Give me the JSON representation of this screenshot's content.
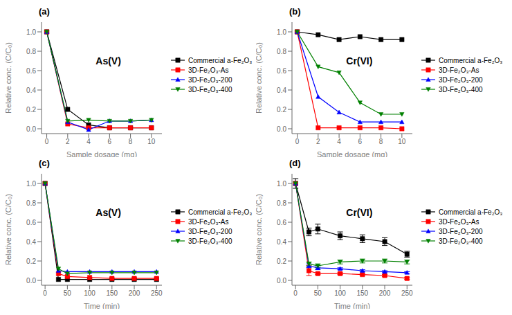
{
  "chart_data": [
    {
      "type": "line",
      "title": "(a)",
      "annotations": [
        "As(V)"
      ],
      "xlabel": "Sample dosage (mg)",
      "ylabel": "Relative conc. (C/C₀)",
      "x": [
        0,
        2,
        4,
        6,
        8,
        10
      ],
      "xlim": [
        -0.5,
        11
      ],
      "xticks": [
        0,
        2,
        4,
        6,
        8,
        10
      ],
      "ylim": [
        -0.05,
        1.1
      ],
      "yticks": [
        {
          "value": 0,
          "label": "0.0"
        },
        0.2,
        0.4,
        0.6,
        0.8,
        {
          "value": 1,
          "label": "1.0"
        }
      ],
      "grid": false,
      "legend": "right",
      "series": [
        {
          "name": "Commercial a-Fe₂O₃",
          "color": "#000000",
          "marker": "square",
          "values": [
            1.0,
            0.2,
            0.04,
            0.01,
            0.01,
            0.01
          ]
        },
        {
          "name": "3D-Fe₂O₃-As",
          "color": "#ff0000",
          "marker": "square",
          "values": [
            1.0,
            0.05,
            0.01,
            0.01,
            0.01,
            0.01
          ]
        },
        {
          "name": "3D-Fe₂O₃-200",
          "color": "#0000ff",
          "marker": "triangle-up",
          "values": [
            1.0,
            0.07,
            -0.01,
            0.08,
            0.08,
            0.09
          ]
        },
        {
          "name": "3D-Fe₂O₃-400",
          "color": "#008000",
          "marker": "triangle-down",
          "values": [
            1.0,
            0.08,
            0.09,
            0.08,
            0.08,
            0.09
          ]
        }
      ]
    },
    {
      "type": "line",
      "title": "(b)",
      "annotations": [
        "Cr(VI)"
      ],
      "xlabel": "Sample dosage (mg)",
      "ylabel": "Relative conc. (C/C₀)",
      "x": [
        0,
        2,
        4,
        6,
        8,
        10
      ],
      "xlim": [
        -0.5,
        11
      ],
      "xticks": [
        0,
        2,
        4,
        6,
        8,
        10
      ],
      "ylim": [
        -0.05,
        1.1
      ],
      "yticks": [
        {
          "value": 0,
          "label": "0.0"
        },
        0.2,
        0.4,
        0.6,
        0.8,
        {
          "value": 1,
          "label": "1.0"
        }
      ],
      "grid": false,
      "legend": "right",
      "series": [
        {
          "name": "Commercial a-Fe₂O₃",
          "color": "#000000",
          "marker": "square",
          "values": [
            1.0,
            0.97,
            0.92,
            0.95,
            0.92,
            0.92
          ]
        },
        {
          "name": "3D-Fe₂O₃-As",
          "color": "#ff0000",
          "marker": "square",
          "values": [
            1.0,
            0.01,
            0.01,
            0.01,
            0.01,
            0.0
          ]
        },
        {
          "name": "3D-Fe₂O₃-200",
          "color": "#0000ff",
          "marker": "triangle-up",
          "values": [
            1.0,
            0.33,
            0.17,
            0.07,
            0.07,
            0.07
          ]
        },
        {
          "name": "3D-Fe₂O₃-400",
          "color": "#008000",
          "marker": "triangle-down",
          "values": [
            1.0,
            0.64,
            0.58,
            0.27,
            0.15,
            0.15
          ]
        }
      ]
    },
    {
      "type": "line",
      "title": "(c)",
      "annotations": [
        "As(V)"
      ],
      "xlabel": "Time (min)",
      "ylabel": "Relative conc. (C/C₀)",
      "x": [
        0,
        30,
        50,
        100,
        150,
        200,
        250
      ],
      "xlim": [
        -8,
        262
      ],
      "xticks": [
        0,
        50,
        100,
        150,
        200,
        250
      ],
      "ylim": [
        -0.05,
        1.1
      ],
      "yticks": [
        {
          "value": 0,
          "label": "0.0"
        },
        0.2,
        0.4,
        0.6,
        0.8,
        {
          "value": 1,
          "label": "1.0"
        }
      ],
      "grid": false,
      "legend": "right",
      "series": [
        {
          "name": "Commercial a-Fe₂O₃",
          "color": "#000000",
          "marker": "square",
          "values": [
            1.0,
            0.01,
            0.01,
            0.01,
            0.01,
            0.01,
            0.01
          ]
        },
        {
          "name": "3D-Fe₂O₃-As",
          "color": "#ff0000",
          "marker": "square",
          "values": [
            1.0,
            0.07,
            0.04,
            0.03,
            0.02,
            0.02,
            0.02
          ]
        },
        {
          "name": "3D-Fe₂O₃-200",
          "color": "#0000ff",
          "marker": "triangle-up",
          "values": [
            1.0,
            0.1,
            0.09,
            0.09,
            0.09,
            0.09,
            0.09
          ]
        },
        {
          "name": "3D-Fe₂O₃-400",
          "color": "#008000",
          "marker": "triangle-down",
          "values": [
            1.0,
            0.12,
            0.07,
            0.08,
            0.08,
            0.08,
            0.08
          ]
        }
      ]
    },
    {
      "type": "line",
      "title": "(d)",
      "annotations": [
        "Cr(VI)"
      ],
      "xlabel": "Time (min)",
      "ylabel": "Relative conc. (C/C₀)",
      "x": [
        0,
        30,
        50,
        100,
        150,
        200,
        250
      ],
      "xlim": [
        -8,
        262
      ],
      "xticks": [
        0,
        50,
        100,
        150,
        200,
        250
      ],
      "ylim": [
        -0.05,
        1.1
      ],
      "yticks": [
        {
          "value": 0,
          "label": "0.0"
        },
        0.2,
        0.4,
        0.6,
        0.8,
        {
          "value": 1,
          "label": "1.0"
        }
      ],
      "grid": false,
      "legend": "right",
      "series": [
        {
          "name": "Commercial a-Fe₂O₃",
          "color": "#000000",
          "marker": "square",
          "values": [
            1.0,
            0.5,
            0.53,
            0.46,
            0.43,
            0.4,
            0.27
          ],
          "errors": [
            0.05,
            0.04,
            0.05,
            0.04,
            0.04,
            0.04,
            0.03
          ]
        },
        {
          "name": "3D-Fe₂O₃-As",
          "color": "#ff0000",
          "marker": "square",
          "values": [
            1.0,
            0.1,
            0.07,
            0.07,
            0.06,
            0.05,
            0.02
          ],
          "errors": [
            0.0,
            0.05,
            0.01,
            0.01,
            0.01,
            0.01,
            0.01
          ]
        },
        {
          "name": "3D-Fe₂O₃-200",
          "color": "#0000ff",
          "marker": "triangle-up",
          "values": [
            1.0,
            0.15,
            0.13,
            0.12,
            0.1,
            0.09,
            0.08
          ],
          "errors": [
            0.0,
            0.02,
            0.02,
            0.01,
            0.01,
            0.01,
            0.01
          ]
        },
        {
          "name": "3D-Fe₂O₃-400",
          "color": "#008000",
          "marker": "triangle-down",
          "values": [
            1.0,
            0.17,
            0.15,
            0.19,
            0.2,
            0.2,
            0.19
          ],
          "errors": [
            0.0,
            0.02,
            0.02,
            0.02,
            0.02,
            0.02,
            0.02
          ]
        }
      ]
    }
  ]
}
